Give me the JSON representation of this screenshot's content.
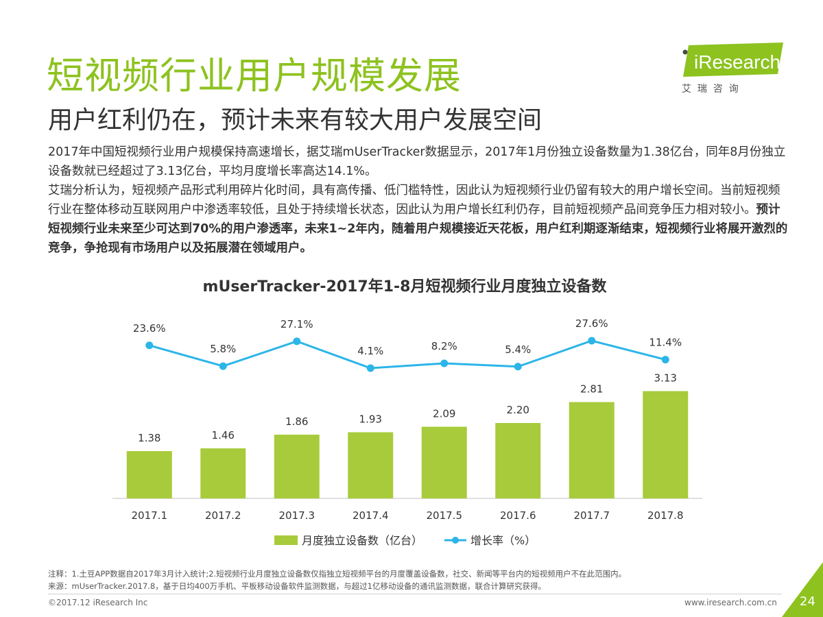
{
  "header": {
    "title": "短视频行业用户规模发展",
    "subtitle": "用户红利仍在，预计未来有较大用户发展空间"
  },
  "logo": {
    "brand": "iResearch",
    "chinese": "艾  瑞  咨  询"
  },
  "body": {
    "p1": "2017年中国短视频行业用户规模保持高速增长，据艾瑞mUserTracker数据显示，2017年1月份独立设备数量为1.38亿台，同年8月份独立设备数就已经超过了3.13亿台，平均月度增长率高达14.1%。",
    "p2_normal": "艾瑞分析认为，短视频产品形式利用碎片化时间，具有高传播、低门槛特性，因此认为短视频行业仍留有较大的用户增长空间。当前短视频行业在整体移动互联网用户中渗透率较低，且处于持续增长状态，因此认为用户增长红利仍存，目前短视频产品间竞争压力相对较小。",
    "p2_bold": "预计短视频行业未来至少可达到70%的用户渗透率，未来1~2年内，随着用户规模接近天花板，用户红利期逐渐结束，短视频行业将展开激烈的竞争，争抢现有市场用户以及拓展潜在领域用户。"
  },
  "chart_data": {
    "type": "bar",
    "title": "mUserTracker-2017年1-8月短视频行业月度独立设备数",
    "categories": [
      "2017.1",
      "2017.2",
      "2017.3",
      "2017.4",
      "2017.5",
      "2017.6",
      "2017.7",
      "2017.8"
    ],
    "series": [
      {
        "name": "月度独立设备数（亿台）",
        "type": "bar",
        "values": [
          1.38,
          1.46,
          1.86,
          1.93,
          2.09,
          2.2,
          2.81,
          3.13
        ],
        "labels": [
          "1.38",
          "1.46",
          "1.86",
          "1.93",
          "2.09",
          "2.20",
          "2.81",
          "3.13"
        ],
        "color": "#a8cb3c"
      },
      {
        "name": "增长率（%）",
        "type": "line",
        "values": [
          23.6,
          5.8,
          27.1,
          4.1,
          8.2,
          5.4,
          27.6,
          11.4
        ],
        "labels": [
          "23.6%",
          "5.8%",
          "27.1%",
          "4.1%",
          "8.2%",
          "5.4%",
          "27.6%",
          "11.4%"
        ],
        "color": "#2bb5e8"
      }
    ],
    "legend_position": "bottom",
    "grid": false
  },
  "notes": {
    "note": "注释：1.土豆APP数据自2017年3月计入统计;2.短视频行业月度独立设备数仅指独立短视频平台的月度覆盖设备数，社交、新闻等平台内的短视频用户不在此范围内。",
    "source": "来源：mUserTracker.2017.8，基于日均400万手机、平板移动设备软件监测数据，与超过1亿移动设备的通讯监测数据，联合计算研究获得。"
  },
  "footer": {
    "copyright": "©2017.12 iResearch Inc",
    "website": "www.iresearch.com.cn",
    "page": "24"
  },
  "colors": {
    "accent": "#8dc21f",
    "bar": "#a8cb3c",
    "line": "#2bb5e8"
  }
}
